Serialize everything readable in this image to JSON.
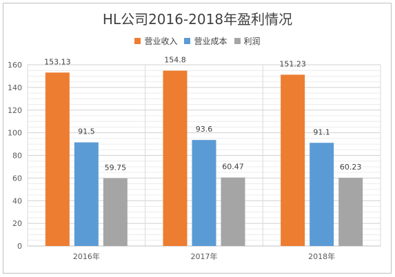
{
  "chart_data": {
    "type": "bar",
    "title": "HL公司2016-2018年盈利情况",
    "categories": [
      "2016年",
      "2017年",
      "2018年"
    ],
    "series": [
      {
        "name": "营业收入",
        "color": "#ED7D31",
        "values": [
          153.13,
          154.8,
          151.23
        ],
        "labels": [
          "153.13",
          "154.8",
          "151.23"
        ]
      },
      {
        "name": "营业成本",
        "color": "#5B9BD5",
        "values": [
          91.5,
          93.6,
          91.1
        ],
        "labels": [
          "91.5",
          "93.6",
          "91.1"
        ]
      },
      {
        "name": "利润",
        "color": "#A5A5A5",
        "values": [
          59.75,
          60.47,
          60.23
        ],
        "labels": [
          "59.75",
          "60.47",
          "60.23"
        ]
      }
    ],
    "ylim": [
      0,
      160
    ],
    "y_ticks": [
      "0",
      "20",
      "40",
      "60",
      "80",
      "100",
      "120",
      "140",
      "160"
    ],
    "grid": true,
    "legend_position": "top"
  }
}
